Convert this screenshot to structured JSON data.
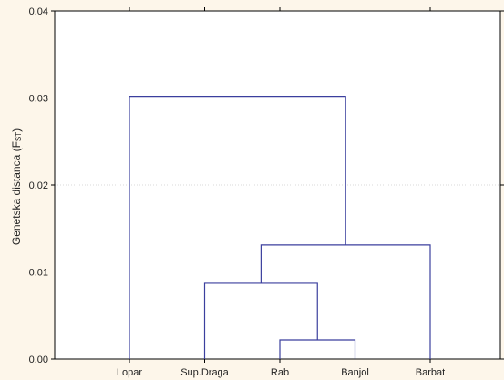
{
  "chart_data": {
    "type": "dendrogram",
    "ylabel": "Genetska distanca (F",
    "ylabel_sub": "ST",
    "ylabel_close": ")",
    "ylim": [
      0,
      0.04
    ],
    "yticks": [
      {
        "value": 0.0,
        "label": "0.00"
      },
      {
        "value": 0.01,
        "label": "0.01"
      },
      {
        "value": 0.02,
        "label": "0.02"
      },
      {
        "value": 0.03,
        "label": "0.03"
      },
      {
        "value": 0.04,
        "label": "0.04"
      }
    ],
    "leaves": [
      "Lopar",
      "Sup.Draga",
      "Rab",
      "Banjol",
      "Barbat"
    ],
    "merges": [
      {
        "left": "Rab",
        "right": "Banjol",
        "height": 0.0022
      },
      {
        "left": "Sup.Draga",
        "right": "Rab+Banjol",
        "height": 0.0087
      },
      {
        "left": "Sup.Draga+Rab+Banjol",
        "right": "Barbat",
        "height": 0.0131
      },
      {
        "left": "Lopar",
        "right": "Sup.Draga+Rab+Banjol+Barbat",
        "height": 0.0302
      }
    ],
    "grid": true,
    "line_color": "#3b3f9e",
    "background_color": "#fdf6ea",
    "plot_background": "#ffffff"
  }
}
